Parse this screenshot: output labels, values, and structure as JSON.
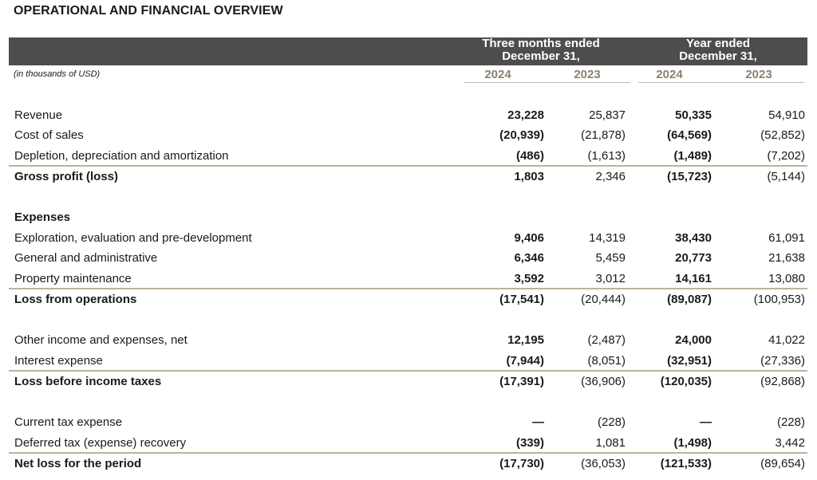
{
  "title": "OPERATIONAL AND FINANCIAL OVERVIEW",
  "header": {
    "group1_line1": "Three months ended",
    "group1_line2": "December 31,",
    "group2_line1": "Year ended",
    "group2_line2": "December 31,",
    "years": [
      "2024",
      "2023",
      "2024",
      "2023"
    ],
    "units": "(in thousands of USD)"
  },
  "rows": [
    {
      "label": "Revenue",
      "values": [
        "23,228",
        "25,837",
        "50,335",
        "54,910"
      ]
    },
    {
      "label": "Cost of sales",
      "values": [
        "(20,939)",
        "(21,878)",
        "(64,569)",
        "(52,852)"
      ]
    },
    {
      "label": "Depletion, depreciation and amortization",
      "values": [
        "(486)",
        "(1,613)",
        "(1,489)",
        "(7,202)"
      ]
    },
    {
      "label": "Gross profit (loss)",
      "values": [
        "1,803",
        "2,346",
        "(15,723)",
        "(5,144)"
      ]
    },
    {
      "label": "Expenses",
      "values": [
        "",
        "",
        "",
        ""
      ]
    },
    {
      "label": "Exploration, evaluation and pre-development",
      "values": [
        "9,406",
        "14,319",
        "38,430",
        "61,091"
      ]
    },
    {
      "label": "General and administrative",
      "values": [
        "6,346",
        "5,459",
        "20,773",
        "21,638"
      ]
    },
    {
      "label": "Property maintenance",
      "values": [
        "3,592",
        "3,012",
        "14,161",
        "13,080"
      ]
    },
    {
      "label": "Loss from operations",
      "values": [
        "(17,541)",
        "(20,444)",
        "(89,087)",
        "(100,953)"
      ]
    },
    {
      "label": "Other income and expenses, net",
      "values": [
        "12,195",
        "(2,487)",
        "24,000",
        "41,022"
      ]
    },
    {
      "label": "Interest expense",
      "values": [
        "(7,944)",
        "(8,051)",
        "(32,951)",
        "(27,336)"
      ]
    },
    {
      "label": "Loss before income taxes",
      "values": [
        "(17,391)",
        "(36,906)",
        "(120,035)",
        "(92,868)"
      ]
    },
    {
      "label": "Current tax expense",
      "values": [
        "—",
        "(228)",
        "—",
        "(228)"
      ]
    },
    {
      "label": "Deferred tax (expense) recovery",
      "values": [
        "(339)",
        "1,081",
        "(1,498)",
        "3,442"
      ]
    },
    {
      "label": "Net loss for the period",
      "values": [
        "(17,730)",
        "(36,053)",
        "(121,533)",
        "(89,654)"
      ]
    }
  ]
}
